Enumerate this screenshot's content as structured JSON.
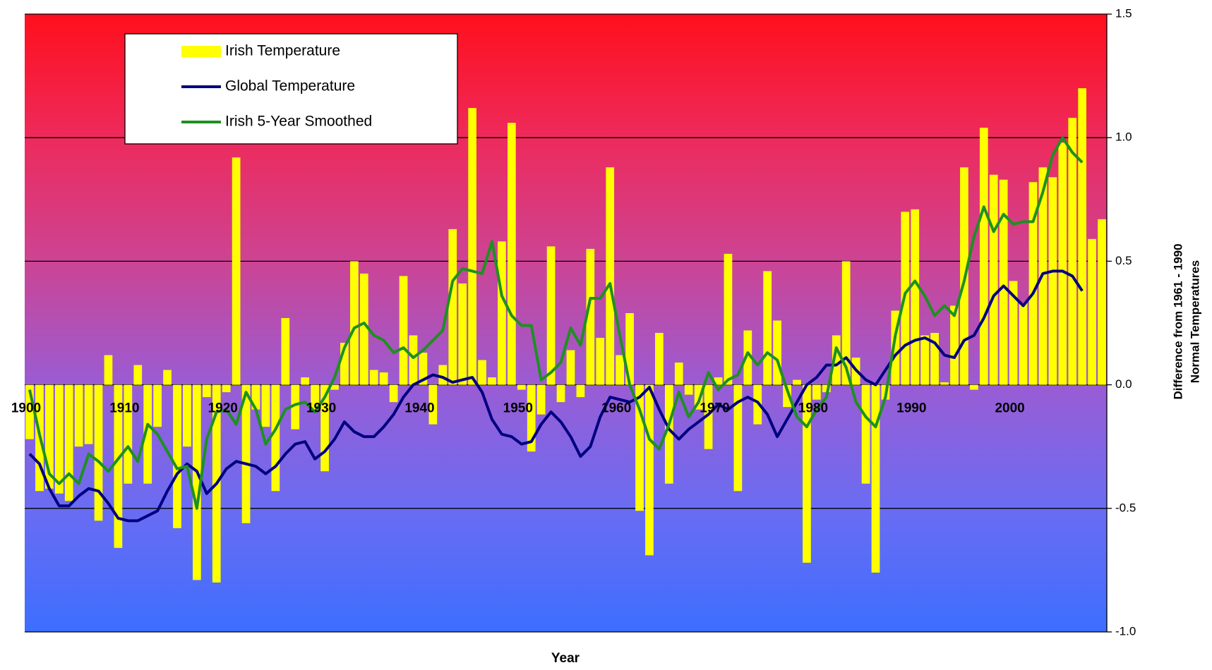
{
  "chart_data": {
    "type": "bar",
    "categories": [
      "1900",
      null,
      null,
      null,
      null,
      null,
      null,
      null,
      null,
      null,
      "1910",
      null,
      null,
      null,
      null,
      null,
      null,
      null,
      null,
      null,
      "1920",
      null,
      null,
      null,
      null,
      null,
      null,
      null,
      null,
      null,
      "1930",
      null,
      null,
      null,
      null,
      null,
      null,
      null,
      null,
      null,
      "1940",
      null,
      null,
      null,
      null,
      null,
      null,
      null,
      null,
      null,
      "1950",
      null,
      null,
      null,
      null,
      null,
      null,
      null,
      null,
      null,
      "1960",
      null,
      null,
      null,
      null,
      null,
      null,
      null,
      null,
      null,
      "1970",
      null,
      null,
      null,
      null,
      null,
      null,
      null,
      null,
      null,
      "1980",
      null,
      null,
      null,
      null,
      null,
      null,
      null,
      null,
      null,
      "1990",
      null,
      null,
      null,
      null,
      null,
      null,
      null,
      null,
      null,
      "2000",
      null,
      null,
      null,
      null,
      null,
      null,
      null,
      null,
      null
    ],
    "series": [
      {
        "name": "Irish Temperature",
        "type": "bar",
        "color": "#ffff00",
        "values": [
          -0.22,
          -0.43,
          -0.42,
          -0.44,
          -0.47,
          -0.25,
          -0.24,
          -0.55,
          0.12,
          -0.66,
          -0.4,
          0.08,
          -0.4,
          -0.17,
          0.06,
          -0.58,
          -0.25,
          -0.79,
          -0.05,
          -0.8,
          -0.03,
          0.92,
          -0.56,
          -0.1,
          -0.17,
          -0.43,
          0.27,
          -0.18,
          0.03,
          -0.1,
          -0.35,
          -0.02,
          0.17,
          0.5,
          0.45,
          0.06,
          0.05,
          -0.07,
          0.44,
          0.2,
          0.13,
          -0.16,
          0.08,
          0.63,
          0.41,
          1.12,
          0.1,
          0.03,
          0.58,
          1.06,
          -0.02,
          -0.27,
          -0.12,
          0.56,
          -0.07,
          0.14,
          -0.05,
          0.55,
          0.19,
          0.88,
          0.12,
          0.29,
          -0.51,
          -0.69,
          0.21,
          -0.4,
          0.09,
          -0.04,
          -0.1,
          -0.26,
          0.03,
          0.53,
          -0.43,
          0.22,
          -0.16,
          0.46,
          0.26,
          -0.09,
          0.02,
          -0.72,
          -0.06,
          -0.03,
          0.2,
          0.5,
          0.11,
          -0.4,
          -0.76,
          -0.06,
          0.3,
          0.7,
          0.71,
          0.2,
          0.21,
          0.01,
          0.32,
          0.88,
          -0.02,
          1.04,
          0.85,
          0.83,
          0.42,
          0.33,
          0.82,
          0.88,
          0.84,
          0.98,
          1.08,
          1.2,
          0.59,
          0.67
        ]
      },
      {
        "name": "Global Temperature",
        "type": "line",
        "color": "#000080",
        "values": [
          -0.28,
          -0.32,
          -0.42,
          -0.49,
          -0.49,
          -0.45,
          -0.42,
          -0.43,
          -0.48,
          -0.54,
          -0.55,
          -0.55,
          -0.53,
          -0.51,
          -0.43,
          -0.36,
          -0.32,
          -0.35,
          -0.44,
          -0.4,
          -0.34,
          -0.31,
          -0.32,
          -0.33,
          -0.36,
          -0.33,
          -0.28,
          -0.24,
          -0.23,
          -0.3,
          -0.27,
          -0.22,
          -0.15,
          -0.19,
          -0.21,
          -0.21,
          -0.17,
          -0.12,
          -0.05,
          0.0,
          0.02,
          0.04,
          0.03,
          0.01,
          0.02,
          0.03,
          -0.03,
          -0.14,
          -0.2,
          -0.21,
          -0.24,
          -0.23,
          -0.16,
          -0.11,
          -0.15,
          -0.21,
          -0.29,
          -0.25,
          -0.13,
          -0.05,
          -0.06,
          -0.07,
          -0.05,
          -0.01,
          -0.1,
          -0.18,
          -0.22,
          -0.18,
          -0.15,
          -0.12,
          -0.08,
          -0.1,
          -0.07,
          -0.05,
          -0.07,
          -0.12,
          -0.21,
          -0.14,
          -0.07,
          0.0,
          0.03,
          0.08,
          0.08,
          0.11,
          0.06,
          0.02,
          0.0,
          0.06,
          0.12,
          0.16,
          0.18,
          0.19,
          0.17,
          0.12,
          0.11,
          0.18,
          0.2,
          0.27,
          0.36,
          0.4,
          0.36,
          0.32,
          0.37,
          0.45,
          0.46,
          0.46,
          0.44,
          0.38,
          null,
          null
        ]
      },
      {
        "name": "Irish 5-Year Smoothed",
        "type": "line",
        "color": "#1e9020",
        "values": [
          -0.02,
          -0.2,
          -0.36,
          -0.4,
          -0.36,
          -0.4,
          -0.28,
          -0.31,
          -0.35,
          -0.3,
          -0.25,
          -0.31,
          -0.16,
          -0.2,
          -0.27,
          -0.34,
          -0.33,
          -0.5,
          -0.22,
          -0.11,
          -0.1,
          -0.16,
          -0.03,
          -0.1,
          -0.24,
          -0.18,
          -0.1,
          -0.08,
          -0.07,
          -0.11,
          -0.05,
          0.03,
          0.15,
          0.23,
          0.25,
          0.2,
          0.18,
          0.13,
          0.15,
          0.11,
          0.14,
          0.18,
          0.22,
          0.42,
          0.47,
          0.46,
          0.45,
          0.58,
          0.36,
          0.28,
          0.24,
          0.24,
          0.02,
          0.05,
          0.09,
          0.23,
          0.16,
          0.35,
          0.35,
          0.41,
          0.2,
          0.0,
          -0.1,
          -0.22,
          -0.26,
          -0.16,
          -0.03,
          -0.13,
          -0.07,
          0.05,
          -0.02,
          0.02,
          0.04,
          0.13,
          0.08,
          0.13,
          0.1,
          -0.02,
          -0.13,
          -0.17,
          -0.1,
          -0.05,
          0.15,
          0.07,
          -0.07,
          -0.13,
          -0.17,
          -0.05,
          0.2,
          0.37,
          0.42,
          0.36,
          0.28,
          0.32,
          0.28,
          0.42,
          0.6,
          0.72,
          0.62,
          0.69,
          0.65,
          0.66,
          0.66,
          0.78,
          0.93,
          1.0,
          0.94,
          0.9,
          null,
          null
        ]
      }
    ],
    "x_label": "Year",
    "y_label": [
      "Difference from 1961 - 1990",
      "Normal Temperatures"
    ],
    "ylim": [
      -1.0,
      1.5
    ],
    "yticks": [
      {
        "value": -1.0,
        "label": "-1.0"
      },
      {
        "value": -0.5,
        "label": "-0.5"
      },
      {
        "value": 0,
        "label": "0.0"
      },
      {
        "value": 0.5,
        "label": "0.5"
      },
      {
        "value": 1.0,
        "label": "1.0"
      },
      {
        "value": 1.5,
        "label": "1.5"
      }
    ],
    "grid": true,
    "legend": "top-left"
  }
}
